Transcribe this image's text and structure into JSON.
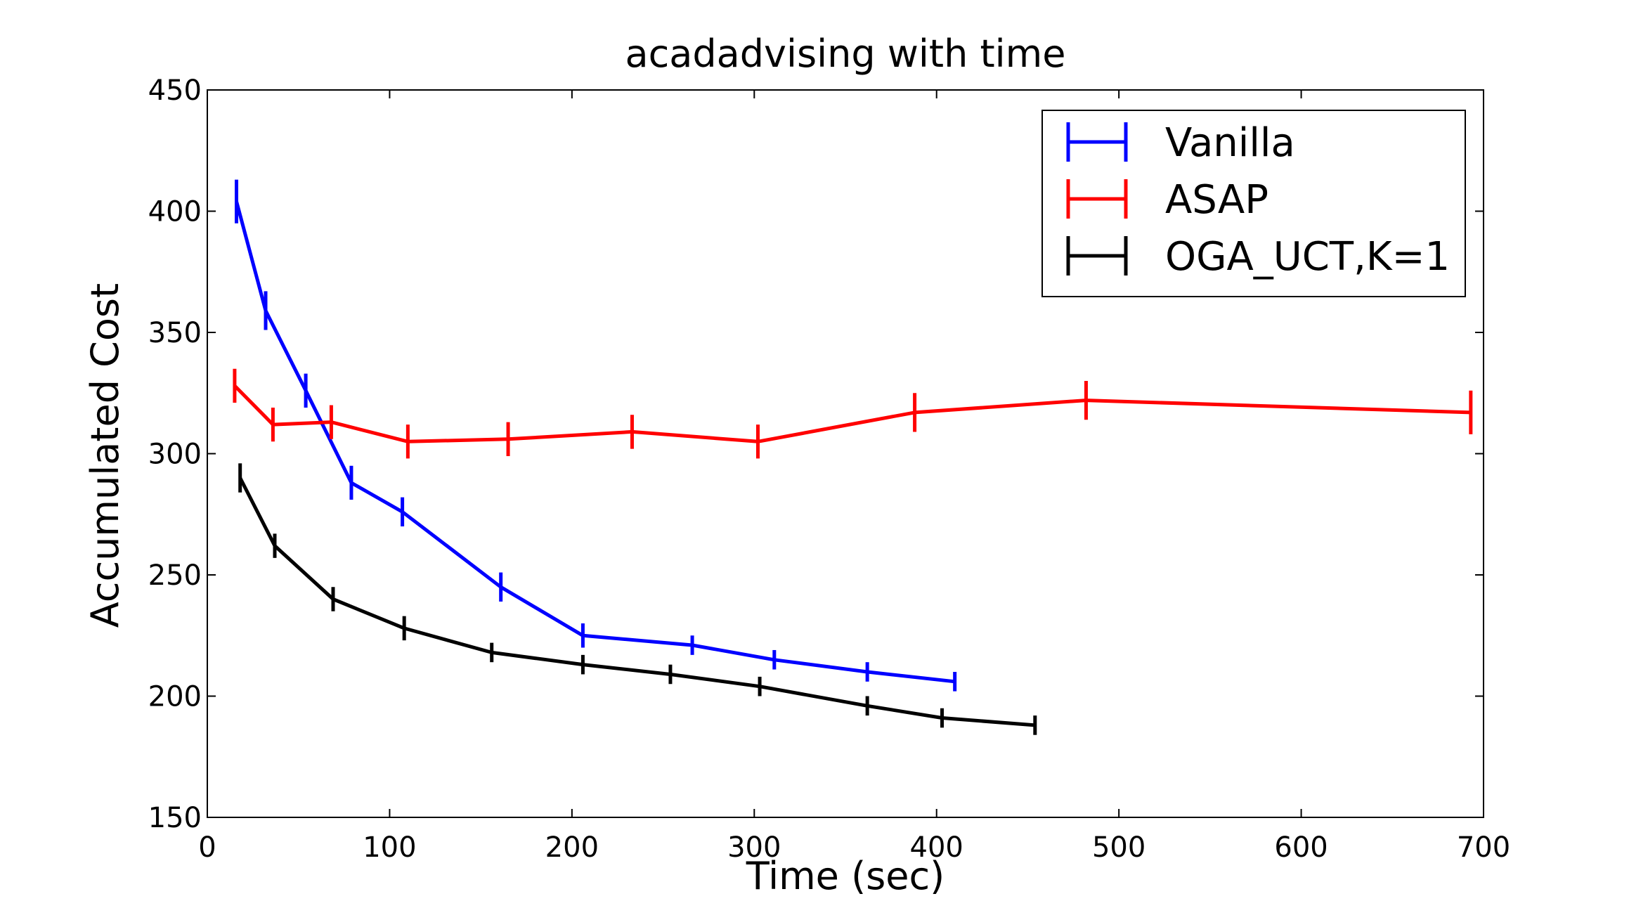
{
  "chart_data": {
    "type": "line",
    "title": "acadadvising with time",
    "xlabel": "Time (sec)",
    "ylabel": "Accumulated Cost",
    "xlim": [
      0,
      700
    ],
    "ylim": [
      150,
      450
    ],
    "xticks": [
      0,
      100,
      200,
      300,
      400,
      500,
      600,
      700
    ],
    "yticks": [
      150,
      200,
      250,
      300,
      350,
      400,
      450
    ],
    "grid": false,
    "legend_position": "top-right",
    "series": [
      {
        "name": "Vanilla",
        "color": "#0000ff",
        "x": [
          16,
          32,
          54,
          79,
          107,
          161,
          206,
          266,
          311,
          362,
          410
        ],
        "y": [
          404,
          359,
          326,
          288,
          276,
          245,
          225,
          221,
          215,
          210,
          206
        ],
        "err": [
          9,
          8,
          7,
          7,
          6,
          6,
          5,
          4,
          4,
          4,
          4
        ]
      },
      {
        "name": "ASAP",
        "color": "#ff0000",
        "x": [
          15,
          36,
          68,
          110,
          165,
          233,
          302,
          388,
          482,
          693
        ],
        "y": [
          328,
          312,
          313,
          305,
          306,
          309,
          305,
          317,
          322,
          317
        ],
        "err": [
          7,
          7,
          7,
          7,
          7,
          7,
          7,
          8,
          8,
          9
        ]
      },
      {
        "name": "OGA_UCT,K=1",
        "color": "#000000",
        "x": [
          18,
          37,
          69,
          108,
          156,
          206,
          254,
          303,
          362,
          403,
          454
        ],
        "y": [
          290,
          262,
          240,
          228,
          218,
          213,
          209,
          204,
          196,
          191,
          188
        ],
        "err": [
          6,
          5,
          5,
          5,
          4,
          4,
          4,
          4,
          4,
          4,
          4
        ]
      }
    ]
  }
}
